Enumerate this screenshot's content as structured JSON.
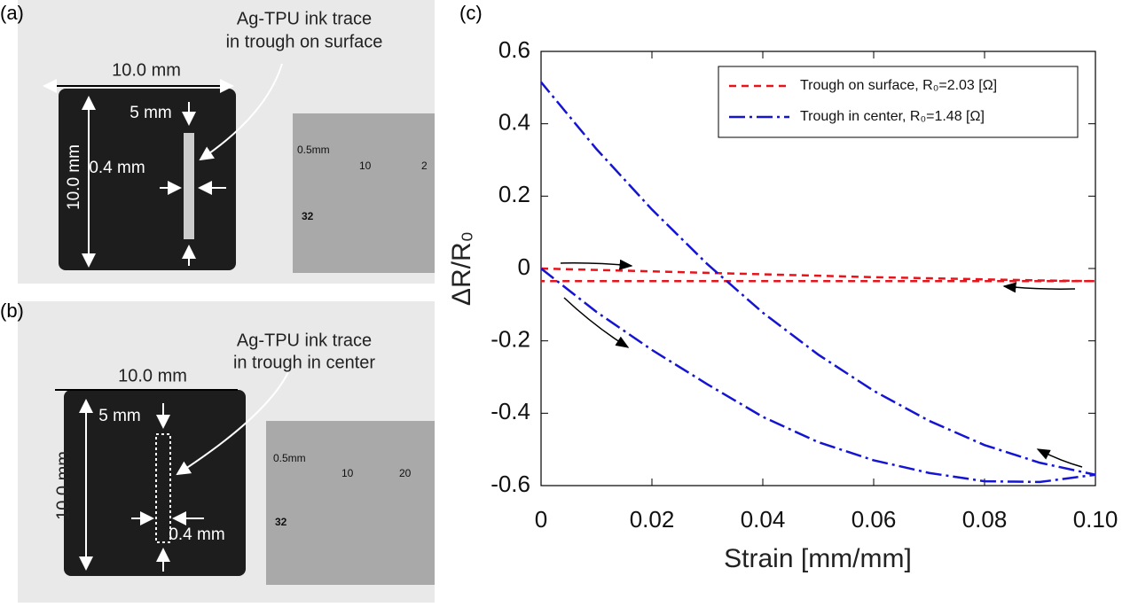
{
  "photos": {
    "a": {
      "panel": "(a)",
      "callout": [
        "Ag-TPU ink trace",
        "in trough on surface"
      ],
      "width": "10.0 mm",
      "height": "10.0 mm",
      "length": "5 mm",
      "trace_width": "0.4 mm",
      "ruler": [
        "0.5mm",
        "10",
        "2",
        "32"
      ]
    },
    "b": {
      "panel": "(b)",
      "callout": [
        "Ag-TPU ink trace",
        "in trough in center"
      ],
      "width": "10.0 mm",
      "height": "10.0 mm",
      "length": "5 mm",
      "trace_width": "0.4 mm",
      "ruler": [
        "0.5mm",
        "10",
        "20",
        "32"
      ]
    }
  },
  "chart_data": {
    "type": "line",
    "panel": "(c)",
    "x_label": "Strain [mm/mm]",
    "y_label": "ΔR/R₀",
    "xlim": [
      0,
      0.1
    ],
    "ylim": [
      -0.6,
      0.6
    ],
    "xticks": [
      0,
      0.02,
      0.04,
      0.06,
      0.08,
      {
        "value": 0.1,
        "label": "0.10"
      }
    ],
    "yticks": [
      -0.6,
      -0.4,
      -0.2,
      0,
      0.2,
      0.4,
      0.6
    ],
    "legend": "upper right",
    "series": [
      {
        "name": "Trough on surface, R₀=2.03 [Ω]",
        "color": "#e8141c",
        "dash": "8,6",
        "x": [
          0,
          0.01,
          0.02,
          0.03,
          0.04,
          0.05,
          0.06,
          0.07,
          0.08,
          0.09,
          0.1,
          0.09,
          0.08,
          0.07,
          0.06,
          0.05,
          0.04,
          0.03,
          0.02,
          0.01,
          0
        ],
        "values": [
          0,
          -0.004,
          -0.008,
          -0.012,
          -0.016,
          -0.02,
          -0.024,
          -0.027,
          -0.03,
          -0.033,
          -0.035,
          -0.035,
          -0.035,
          -0.035,
          -0.035,
          -0.035,
          -0.035,
          -0.035,
          -0.035,
          -0.035,
          -0.035
        ]
      },
      {
        "name": "Trough in center, R₀=1.48 [Ω]",
        "color": "#1414d2",
        "dash": "18,5,3,5",
        "x": [
          0,
          0.01,
          0.02,
          0.03,
          0.04,
          0.05,
          0.06,
          0.07,
          0.08,
          0.09,
          0.1,
          0.09,
          0.08,
          0.07,
          0.06,
          0.05,
          0.04,
          0.03,
          0.02,
          0.01,
          0
        ],
        "values": [
          0,
          -0.12,
          -0.225,
          -0.32,
          -0.41,
          -0.48,
          -0.53,
          -0.565,
          -0.588,
          -0.59,
          -0.57,
          -0.537,
          -0.488,
          -0.421,
          -0.338,
          -0.238,
          -0.122,
          0.012,
          0.163,
          0.33,
          0.515
        ]
      }
    ]
  }
}
